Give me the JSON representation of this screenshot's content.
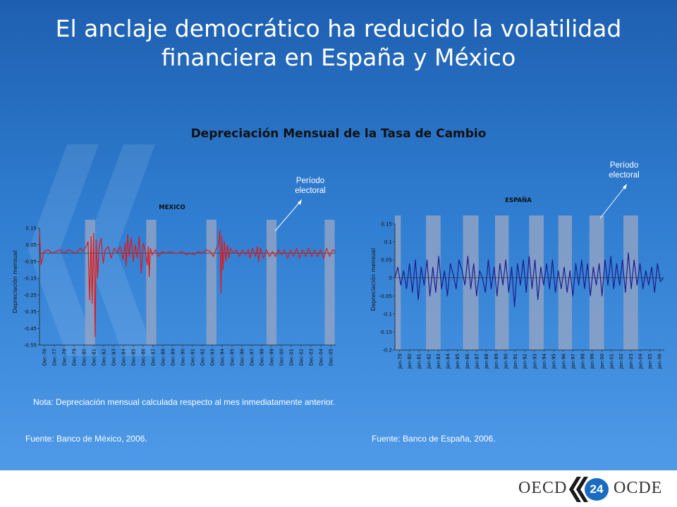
{
  "title_line1": "El anclaje democrático ha reducido la volatilidad",
  "title_line2": "financiera en España y México",
  "chart_main_title": "Depreciación Mensual de la Tasa de Cambio",
  "annotation_label": "Período\nelectoral",
  "note": "Nota: Depreciación mensual calculada respecto al mes inmediatamente anterior.",
  "source_mexico": "Fuente: Banco de México, 2006.",
  "source_spain": "Fuente: Banco de España, 2006.",
  "footer": {
    "left_brand": "OECD",
    "right_brand": "OCDE",
    "page_number": "24"
  },
  "colors": {
    "mexico_series": "#e01818",
    "spain_series": "#1c1c8c",
    "electoral_band": "#8ea2c6",
    "background": "#2f7dd0"
  },
  "chart_data": [
    {
      "type": "line",
      "title": "MEXICO",
      "ylabel": "Depreciación mensual",
      "ylim": [
        -0.55,
        0.15
      ],
      "yticks": [
        0.15,
        0.05,
        -0.05,
        -0.15,
        -0.25,
        -0.35,
        -0.45,
        -0.55
      ],
      "ytick_labels": [
        "0.15",
        "0.05",
        "-0.05",
        "-0.15",
        "-0.25",
        "-0.35",
        "-0.45",
        "-0.55"
      ],
      "categories": [
        "Dec-76",
        "Dec-77",
        "Dec-78",
        "Dec-79",
        "Dec-80",
        "Dec-81",
        "Dec-82",
        "Dec-83",
        "Dec-84",
        "Dec-85",
        "Dec-86",
        "Dec-87",
        "Dec-88",
        "Dec-89",
        "Dec-90",
        "Dec-91",
        "Dec-92",
        "Dec-93",
        "Dec-94",
        "Dec-95",
        "Dec-96",
        "Dec-97",
        "Dec-98",
        "Dec-99",
        "Dec-00",
        "Dec-01",
        "Dec-02",
        "Dec-03",
        "Dec-04",
        "Dec-05"
      ],
      "x_start": 1976.95,
      "x_end": 2006.5,
      "electoral_periods": [
        [
          1981.5,
          1982.5
        ],
        [
          1987.6,
          1988.6
        ],
        [
          1993.6,
          1994.6
        ],
        [
          1999.6,
          2000.6
        ],
        [
          2005.4,
          2006.4
        ]
      ],
      "series": [
        {
          "x": [
            1976.95,
            1977.1,
            1977.4,
            1977.8,
            1978.2,
            1978.6,
            1979.0,
            1979.4,
            1979.8,
            1980.2,
            1980.6,
            1981.0,
            1981.3,
            1981.6,
            1981.8,
            1981.95,
            1982.1,
            1982.2,
            1982.35,
            1982.5,
            1982.6,
            1982.75,
            1982.9,
            1983.1,
            1983.3,
            1983.5,
            1983.8,
            1984.1,
            1984.4,
            1984.7,
            1985.0,
            1985.3,
            1985.5,
            1985.6,
            1985.75,
            1985.9,
            1986.1,
            1986.3,
            1986.5,
            1986.7,
            1986.9,
            1987.1,
            1987.3,
            1987.5,
            1987.7,
            1987.8,
            1987.9,
            1988.0,
            1988.2,
            1988.5,
            1988.8,
            1989.2,
            1989.6,
            1990.0,
            1990.4,
            1990.8,
            1991.2,
            1991.6,
            1992.0,
            1992.4,
            1992.8,
            1993.2,
            1993.6,
            1994.0,
            1994.3,
            1994.6,
            1994.8,
            1994.95,
            1995.05,
            1995.15,
            1995.25,
            1995.4,
            1995.55,
            1995.7,
            1995.85,
            1996.0,
            1996.3,
            1996.6,
            1996.9,
            1997.2,
            1997.5,
            1997.8,
            1997.95,
            1998.2,
            1998.5,
            1998.7,
            1998.8,
            1999.0,
            1999.3,
            1999.6,
            1999.9,
            2000.2,
            2000.5,
            2000.8,
            2001.1,
            2001.4,
            2001.7,
            2002.0,
            2002.3,
            2002.6,
            2002.9,
            2003.2,
            2003.5,
            2003.8,
            2004.1,
            2004.4,
            2004.7,
            2005.0,
            2005.3,
            2005.6,
            2005.9,
            2006.2,
            2006.5
          ],
          "y": [
            0.13,
            -0.07,
            0.01,
            0.02,
            0.0,
            0.01,
            0.02,
            0.0,
            0.02,
            0.01,
            0.0,
            0.03,
            0.01,
            0.04,
            0.07,
            -0.28,
            0.1,
            -0.3,
            0.12,
            -0.5,
            0.08,
            -0.15,
            0.04,
            0.09,
            -0.06,
            0.02,
            0.04,
            -0.03,
            0.03,
            0.0,
            0.04,
            -0.04,
            0.06,
            -0.08,
            0.11,
            -0.02,
            0.09,
            -0.05,
            0.05,
            -0.03,
            0.1,
            -0.12,
            0.06,
            0.02,
            -0.07,
            0.04,
            -0.14,
            0.03,
            -0.01,
            0.02,
            -0.02,
            0.01,
            0.0,
            0.01,
            0.0,
            0.0,
            0.01,
            -0.01,
            0.0,
            -0.01,
            0.01,
            0.0,
            0.02,
            0.01,
            -0.02,
            0.03,
            0.05,
            0.14,
            -0.24,
            0.1,
            -0.1,
            0.07,
            -0.05,
            0.05,
            -0.03,
            0.03,
            0.0,
            0.02,
            -0.02,
            0.02,
            -0.01,
            0.02,
            -0.03,
            0.03,
            -0.02,
            0.04,
            -0.05,
            0.03,
            -0.03,
            0.02,
            -0.02,
            0.01,
            -0.02,
            0.02,
            -0.01,
            0.02,
            -0.03,
            0.02,
            -0.02,
            0.03,
            -0.03,
            0.02,
            -0.02,
            0.03,
            -0.02,
            0.02,
            -0.02,
            0.02,
            -0.03,
            0.03,
            -0.02,
            0.02,
            0.01
          ]
        }
      ]
    },
    {
      "type": "line",
      "title": "ESPAÑA",
      "ylabel": "Depreciación mensual",
      "ylim": [
        -0.2,
        0.15
      ],
      "yticks": [
        0.15,
        0.1,
        0.05,
        0,
        -0.05,
        -0.1,
        -0.15,
        -0.2
      ],
      "ytick_labels": [
        "0.15",
        "0.1",
        "0.05",
        "0",
        "-0.05",
        "-0.1",
        "-0.15",
        "-0.2"
      ],
      "categories": [
        "Jan-79",
        "Jan-80",
        "Jan-81",
        "Jan-82",
        "Jan-83",
        "Jan-84",
        "Jan-85",
        "Jan-86",
        "Jan-87",
        "Jan-88",
        "Jan-89",
        "Jan-90",
        "Jan-91",
        "Jan-92",
        "Jan-93",
        "Jan-94",
        "Jan-95",
        "Jan-96",
        "Jan-97",
        "Jan-98",
        "Jan-99",
        "Jan-00",
        "Jan-01",
        "Jan-02",
        "Jan-03",
        "Jan-04",
        "Jan-05",
        "Jan-06"
      ],
      "x_start": 1979.0,
      "x_end": 2006.7,
      "electoral_periods": [
        [
          1979.0,
          1979.6
        ],
        [
          1982.2,
          1983.7
        ],
        [
          1986.0,
          1987.6
        ],
        [
          1989.3,
          1990.7
        ],
        [
          1992.8,
          1994.3
        ],
        [
          1995.8,
          1997.2
        ],
        [
          1999.0,
          2000.5
        ],
        [
          2002.5,
          2004.0
        ]
      ],
      "series": [
        {
          "x": [
            1979.0,
            1979.3,
            1979.6,
            1979.9,
            1980.2,
            1980.5,
            1980.8,
            1981.1,
            1981.4,
            1981.7,
            1982.0,
            1982.3,
            1982.6,
            1982.9,
            1983.2,
            1983.5,
            1983.8,
            1984.1,
            1984.4,
            1984.7,
            1985.0,
            1985.3,
            1985.6,
            1985.9,
            1986.2,
            1986.5,
            1986.8,
            1987.1,
            1987.4,
            1987.7,
            1988.0,
            1988.3,
            1988.6,
            1988.9,
            1989.2,
            1989.5,
            1989.8,
            1990.1,
            1990.4,
            1990.7,
            1991.0,
            1991.3,
            1991.6,
            1991.9,
            1992.2,
            1992.5,
            1992.8,
            1993.1,
            1993.4,
            1993.7,
            1994.0,
            1994.3,
            1994.6,
            1994.9,
            1995.2,
            1995.5,
            1995.8,
            1996.1,
            1996.4,
            1996.7,
            1997.0,
            1997.3,
            1997.6,
            1997.9,
            1998.2,
            1998.5,
            1998.8,
            1999.1,
            1999.4,
            1999.7,
            2000.0,
            2000.3,
            2000.6,
            2000.9,
            2001.2,
            2001.5,
            2001.8,
            2002.1,
            2002.4,
            2002.7,
            2003.0,
            2003.3,
            2003.6,
            2003.9,
            2004.2,
            2004.5,
            2004.8,
            2005.1,
            2005.4,
            2005.7,
            2006.0,
            2006.3,
            2006.6
          ],
          "y": [
            0.0,
            0.03,
            -0.02,
            0.02,
            -0.03,
            0.04,
            -0.04,
            0.05,
            -0.06,
            0.03,
            -0.02,
            0.05,
            -0.05,
            0.03,
            -0.04,
            0.06,
            -0.03,
            0.02,
            -0.05,
            0.04,
            0.01,
            -0.03,
            0.05,
            0.02,
            -0.02,
            0.06,
            -0.03,
            0.04,
            -0.05,
            0.02,
            0.0,
            -0.04,
            0.05,
            -0.03,
            0.03,
            -0.05,
            0.04,
            -0.02,
            0.05,
            -0.04,
            0.03,
            -0.08,
            0.04,
            -0.02,
            0.05,
            -0.04,
            0.06,
            -0.03,
            0.05,
            -0.06,
            0.03,
            -0.02,
            0.04,
            -0.03,
            0.05,
            -0.04,
            0.02,
            -0.03,
            0.03,
            -0.04,
            0.02,
            -0.05,
            0.04,
            -0.02,
            0.05,
            -0.03,
            0.04,
            -0.05,
            0.03,
            -0.02,
            0.04,
            -0.05,
            0.05,
            -0.02,
            0.06,
            -0.03,
            0.04,
            -0.02,
            0.05,
            -0.04,
            0.07,
            -0.03,
            0.05,
            -0.02,
            0.04,
            -0.03,
            0.02,
            -0.02,
            0.03,
            -0.04,
            0.04,
            -0.01,
            0.0
          ]
        }
      ]
    }
  ]
}
